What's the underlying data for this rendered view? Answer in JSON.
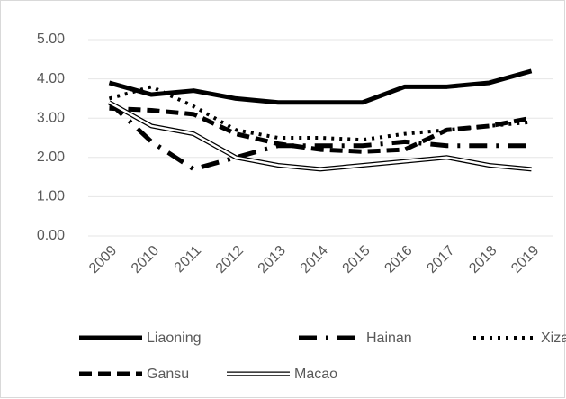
{
  "chart_data": {
    "type": "line",
    "categories": [
      "2009",
      "2010",
      "2011",
      "2012",
      "2013",
      "2014",
      "2015",
      "2016",
      "2017",
      "2018",
      "2019"
    ],
    "series": [
      {
        "name": "Liaoning",
        "color": "#000000",
        "style": "solid",
        "values": [
          3.9,
          3.6,
          3.7,
          3.5,
          3.4,
          3.4,
          3.4,
          3.8,
          3.8,
          3.9,
          4.2
        ]
      },
      {
        "name": "Hainan",
        "color": "#000000",
        "style": "dashdot",
        "values": [
          3.4,
          2.4,
          1.7,
          2.0,
          2.3,
          2.3,
          2.3,
          2.4,
          2.3,
          2.3,
          2.3
        ]
      },
      {
        "name": "Xizang",
        "color": "#000000",
        "style": "dotted",
        "values": [
          3.5,
          3.8,
          3.3,
          2.7,
          2.5,
          2.5,
          2.45,
          2.6,
          2.7,
          2.8,
          2.9
        ]
      },
      {
        "name": "Gansu",
        "color": "#000000",
        "style": "dashed",
        "values": [
          3.25,
          3.2,
          3.1,
          2.6,
          2.35,
          2.2,
          2.15,
          2.2,
          2.7,
          2.8,
          3.0
        ]
      },
      {
        "name": "Macao",
        "color": "#000000",
        "style": "double",
        "values": [
          3.4,
          2.8,
          2.6,
          2.0,
          1.8,
          1.7,
          1.8,
          1.9,
          2.0,
          1.8,
          1.7
        ]
      }
    ],
    "ylim": [
      0,
      5
    ],
    "yticks": [
      {
        "value": 0,
        "label": "0.00"
      },
      {
        "value": 1,
        "label": "1.00"
      },
      {
        "value": 2,
        "label": "2.00"
      },
      {
        "value": 3,
        "label": "3.00"
      },
      {
        "value": 4,
        "label": "4.00"
      },
      {
        "value": 5,
        "label": "5.00"
      }
    ],
    "grid": true
  }
}
